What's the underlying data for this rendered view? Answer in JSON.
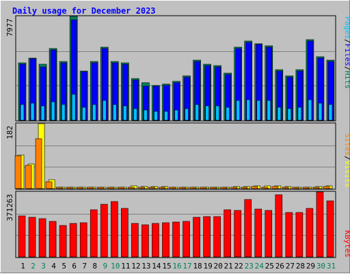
{
  "title": "Daily usage for December 2023",
  "colors": {
    "background": "#c0c0c0",
    "title": "#0000ff",
    "hits": "#00805a",
    "files": "#0000ff",
    "pages": "#00c0ff",
    "visits": "#ffff00",
    "sites": "#ff8000",
    "kbytes": "#ff0000",
    "weekday_label": "#000000",
    "weekend_label": "#00805a"
  },
  "panels": {
    "top": {
      "ymax_label": "7977",
      "legend": [
        "Pages",
        "/",
        "Files",
        "/",
        "Hits"
      ]
    },
    "middle": {
      "ymax_label": "182",
      "legend": [
        "Sites",
        "/",
        "Visits"
      ]
    },
    "bottom": {
      "ymax_label": "371263",
      "legend": [
        "KBytes"
      ]
    }
  },
  "chart_data": [
    {
      "type": "bar",
      "name": "top",
      "categories": [
        "1",
        "2",
        "3",
        "4",
        "5",
        "6",
        "7",
        "8",
        "9",
        "10",
        "11",
        "12",
        "13",
        "14",
        "15",
        "16",
        "17",
        "18",
        "19",
        "20",
        "21",
        "22",
        "23",
        "24",
        "25",
        "26",
        "27",
        "28",
        "29",
        "30",
        "31"
      ],
      "weekend_days": [
        "2",
        "3",
        "9",
        "10",
        "16",
        "17",
        "23",
        "24",
        "30",
        "31"
      ],
      "ylim": [
        0,
        7977
      ],
      "series": [
        {
          "name": "Hits",
          "values": [
            4400,
            4800,
            4300,
            5500,
            4500,
            7977,
            3800,
            4500,
            5600,
            4500,
            4400,
            3200,
            2900,
            2700,
            2800,
            3000,
            3400,
            4600,
            4300,
            4200,
            3600,
            5600,
            6100,
            5900,
            5700,
            3900,
            3400,
            3900,
            6200,
            4900,
            4600
          ]
        },
        {
          "name": "Files",
          "values": [
            4300,
            4700,
            4100,
            5400,
            4400,
            7700,
            3700,
            4400,
            5500,
            4400,
            4300,
            3100,
            2600,
            2600,
            2700,
            2900,
            3300,
            4500,
            4200,
            4100,
            3500,
            5500,
            6000,
            5800,
            5600,
            3800,
            3300,
            3800,
            6100,
            4800,
            4500
          ]
        },
        {
          "name": "Pages",
          "values": [
            1200,
            1300,
            1100,
            1400,
            1200,
            2000,
            1000,
            1200,
            1500,
            1200,
            1100,
            900,
            800,
            700,
            700,
            800,
            900,
            1200,
            1100,
            1100,
            1000,
            1500,
            1600,
            1500,
            1500,
            1000,
            900,
            1000,
            1600,
            1300,
            1200
          ]
        }
      ]
    },
    {
      "type": "bar",
      "name": "middle",
      "categories": [
        "1",
        "2",
        "3",
        "4",
        "5",
        "6",
        "7",
        "8",
        "9",
        "10",
        "11",
        "12",
        "13",
        "14",
        "15",
        "16",
        "17",
        "18",
        "19",
        "20",
        "21",
        "22",
        "23",
        "24",
        "25",
        "26",
        "27",
        "28",
        "29",
        "30",
        "31"
      ],
      "ylim": [
        0,
        182
      ],
      "series": [
        {
          "name": "Visits",
          "values": [
            94,
            69,
            182,
            25,
            4,
            4,
            4,
            4,
            4,
            4,
            4,
            8,
            6,
            6,
            5,
            4,
            4,
            4,
            4,
            4,
            4,
            6,
            6,
            8,
            7,
            8,
            6,
            4,
            4,
            6,
            8
          ]
        },
        {
          "name": "Sites",
          "values": [
            91,
            66,
            139,
            19,
            3,
            3,
            3,
            3,
            3,
            3,
            3,
            4,
            4,
            4,
            3,
            3,
            3,
            3,
            3,
            3,
            3,
            4,
            4,
            5,
            4,
            5,
            4,
            3,
            3,
            4,
            5
          ]
        }
      ]
    },
    {
      "type": "bar",
      "name": "bottom",
      "categories": [
        "1",
        "2",
        "3",
        "4",
        "5",
        "6",
        "7",
        "8",
        "9",
        "10",
        "11",
        "12",
        "13",
        "14",
        "15",
        "16",
        "17",
        "18",
        "19",
        "20",
        "21",
        "22",
        "23",
        "24",
        "25",
        "26",
        "27",
        "28",
        "29",
        "30",
        "31"
      ],
      "ylim": [
        0,
        371263
      ],
      "series": [
        {
          "name": "KBytes",
          "values": [
            235000,
            225000,
            218000,
            203000,
            180000,
            190000,
            196000,
            270000,
            302000,
            318000,
            276000,
            193000,
            184000,
            193000,
            194000,
            198000,
            204000,
            225000,
            230000,
            230000,
            270000,
            266000,
            329000,
            274000,
            266000,
            356000,
            255000,
            255000,
            276000,
            371263,
            322000
          ]
        }
      ]
    }
  ]
}
